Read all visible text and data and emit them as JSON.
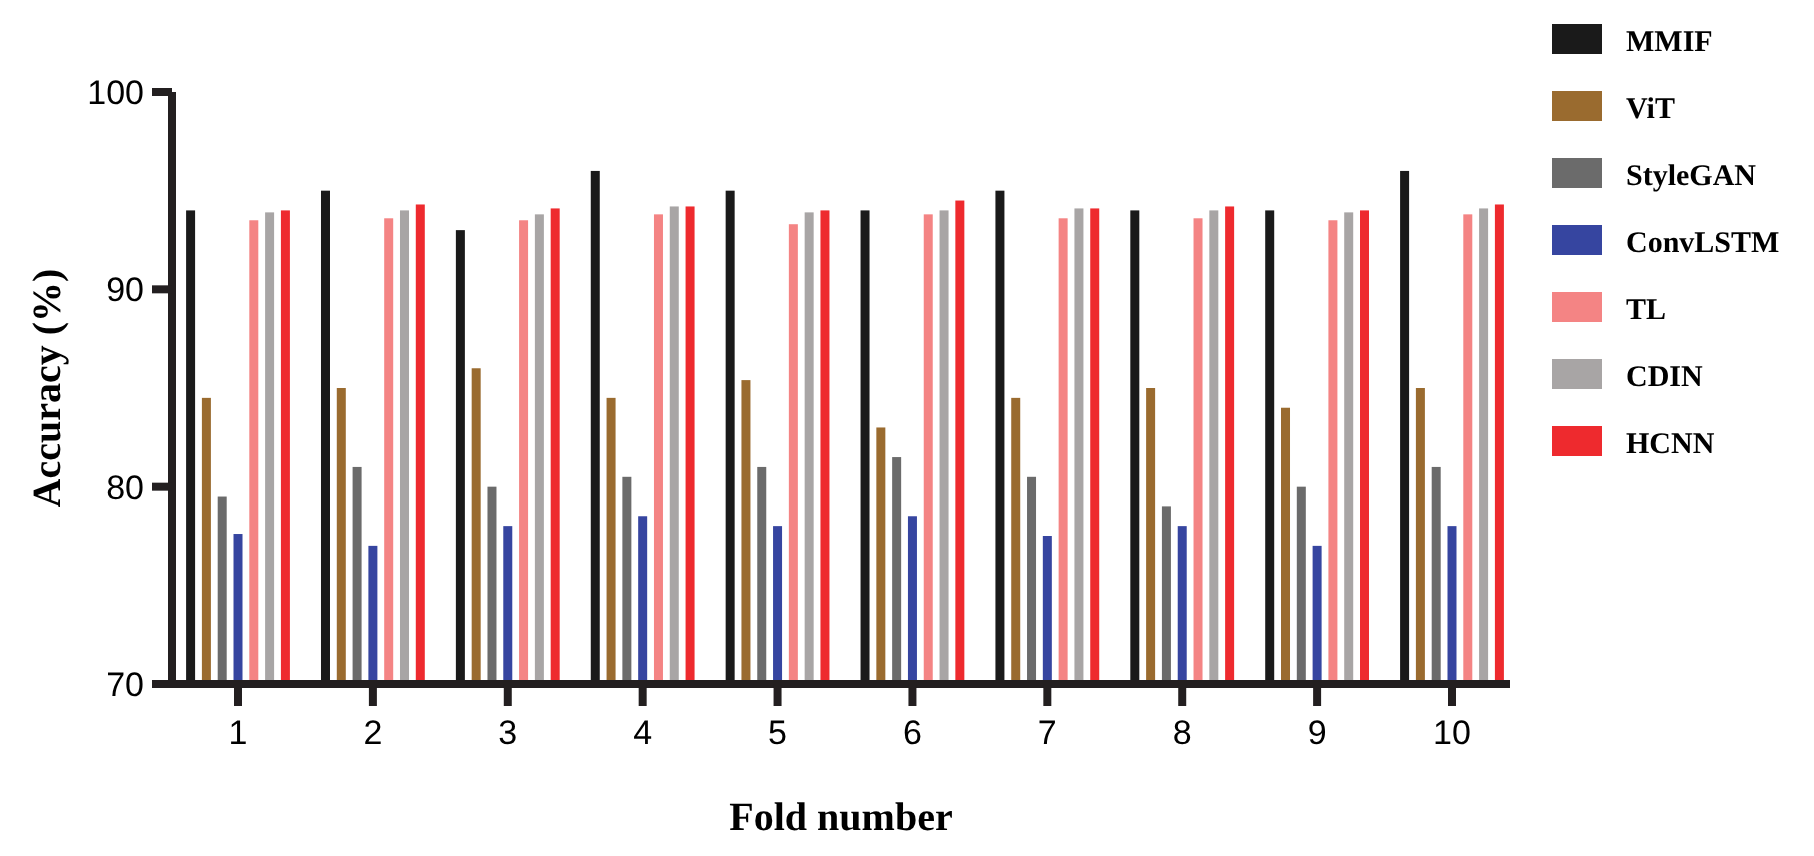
{
  "chart_data": {
    "type": "bar",
    "xlabel": "Fold number",
    "ylabel": "Accuracy (%)",
    "categories": [
      "1",
      "2",
      "3",
      "4",
      "5",
      "6",
      "7",
      "8",
      "9",
      "10"
    ],
    "series": [
      {
        "name": "MMIF",
        "color": "#1a1a1a",
        "values": [
          94,
          95,
          93,
          96,
          95,
          94,
          95,
          94,
          94,
          96
        ]
      },
      {
        "name": "ViT",
        "color": "#9a6b2f",
        "values": [
          84.5,
          85,
          86,
          84.5,
          85.4,
          83,
          84.5,
          85,
          84,
          85
        ]
      },
      {
        "name": "StyleGAN",
        "color": "#6b6b6b",
        "values": [
          79.5,
          81,
          80,
          80.5,
          81,
          81.5,
          80.5,
          79,
          80,
          81
        ]
      },
      {
        "name": "ConvLSTM",
        "color": "#3645a0",
        "values": [
          77.6,
          77,
          78,
          78.5,
          78,
          78.5,
          77.5,
          78,
          77,
          78
        ]
      },
      {
        "name": "TL",
        "color": "#f48484",
        "values": [
          93.5,
          93.6,
          93.5,
          93.8,
          93.3,
          93.8,
          93.6,
          93.6,
          93.5,
          93.8
        ]
      },
      {
        "name": "CDIN",
        "color": "#a8a5a5",
        "values": [
          93.9,
          94,
          93.8,
          94.2,
          93.9,
          94,
          94.1,
          94,
          93.9,
          94.1
        ]
      },
      {
        "name": "HCNN",
        "color": "#ee2a2e",
        "values": [
          94,
          94.3,
          94.1,
          94.2,
          94,
          94.5,
          94.1,
          94.2,
          94,
          94.3
        ]
      }
    ],
    "ylim": [
      70,
      100
    ],
    "yticks": [
      70,
      80,
      90,
      100
    ],
    "grid": false,
    "legend": "top right"
  }
}
